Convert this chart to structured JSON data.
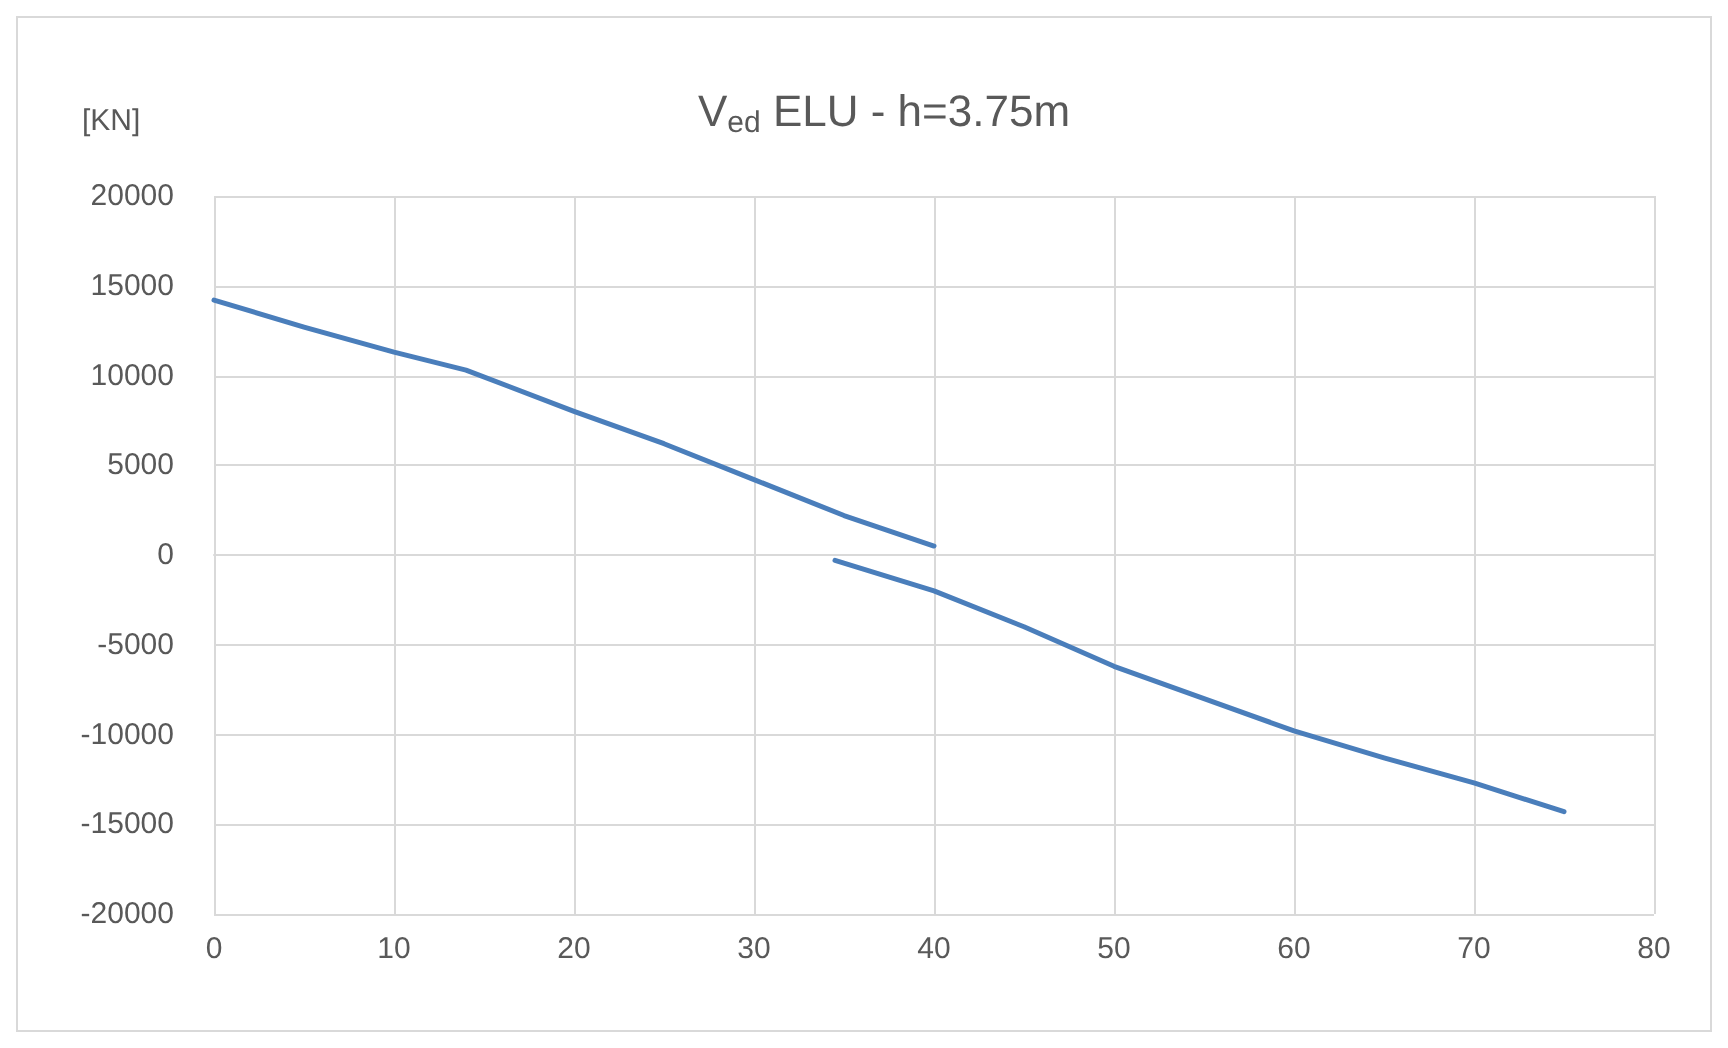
{
  "chart_data": {
    "type": "line",
    "title": "V$_{ed}$ ELU - h=3.75m",
    "ylabel": "[KN]",
    "series": [
      {
        "color": "#4a7ebb",
        "x": [
          0,
          5,
          10,
          14,
          20,
          25,
          30,
          35,
          40
        ],
        "values": [
          14200,
          12700,
          11300,
          10300,
          8000,
          6200,
          4200,
          2200,
          500
        ]
      },
      {
        "color": "#4a7ebb",
        "x": [
          34.5,
          40,
          45,
          50,
          55,
          60,
          65,
          70,
          75
        ],
        "values": [
          -300,
          -2000,
          -4000,
          -6200,
          -8000,
          -9800,
          -11300,
          -12700,
          -14300
        ]
      }
    ],
    "xlim": [
      0,
      80
    ],
    "xticks": [
      0,
      10,
      20,
      30,
      40,
      50,
      60,
      70,
      80
    ],
    "ylim": [
      -20000,
      20000
    ],
    "yticks": [
      -20000,
      -15000,
      -10000,
      -5000,
      0,
      5000,
      10000,
      15000,
      20000
    ],
    "grid": true,
    "marker": "none",
    "line_style": "solid"
  }
}
